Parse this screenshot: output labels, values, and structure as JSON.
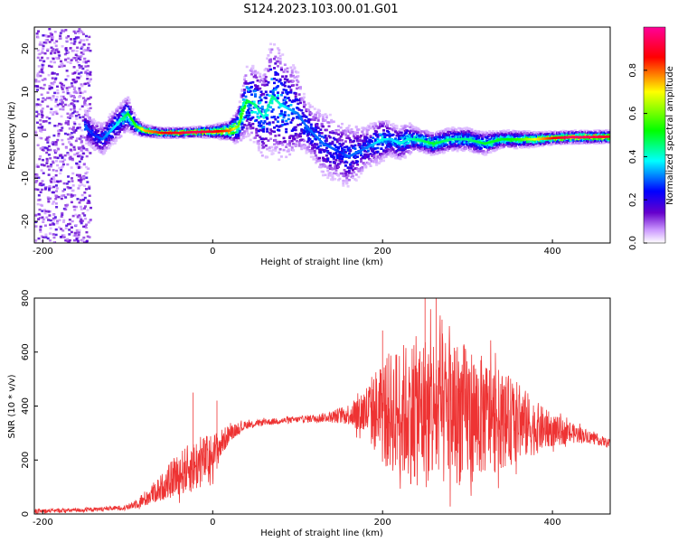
{
  "title": "S124.2023.103.00.01.G01",
  "chart_data": [
    {
      "type": "heatmap",
      "xlabel": "Height of straight line (km)",
      "ylabel": "Frequency (Hz)",
      "xlim": [
        -210,
        468
      ],
      "ylim": [
        -25,
        25
      ],
      "x_ticks": [
        -200,
        0,
        200,
        400
      ],
      "y_ticks": [
        -20,
        -10,
        0,
        10,
        20
      ],
      "colorbar": {
        "label": "Normalized spectral amplitude",
        "range": [
          0,
          1
        ],
        "ticks": [
          "0.0",
          "0.2",
          "0.4",
          "0.6",
          "0.8"
        ],
        "colormap": [
          "#ffffff",
          "#6600cc",
          "#0000ff",
          "#00ffff",
          "#00ff00",
          "#ffff00",
          "#ff0000",
          "#ff00aa"
        ]
      },
      "ridge": {
        "x": [
          -150,
          -140,
          -130,
          -120,
          -110,
          -100,
          -90,
          -80,
          -60,
          -40,
          -20,
          0,
          20,
          30,
          40,
          50,
          60,
          70,
          80,
          90,
          100,
          110,
          120,
          130,
          140,
          150,
          160,
          170,
          180,
          190,
          200,
          210,
          220,
          230,
          240,
          260,
          280,
          300,
          320,
          340,
          360,
          380,
          400,
          420,
          440,
          465
        ],
        "y": [
          2,
          0,
          -1,
          1,
          3,
          5,
          2,
          1,
          0.5,
          0.5,
          0.7,
          0.8,
          1,
          2,
          8,
          7,
          4,
          9,
          7,
          6,
          5,
          2,
          0,
          -2,
          -3,
          -4,
          -5,
          -4,
          -3,
          -2,
          -1,
          -1,
          -2,
          -1,
          -1,
          -2,
          -1,
          -1,
          -2,
          -1,
          -1,
          -1,
          -0.7,
          -0.5,
          -0.5,
          -0.4
        ],
        "amplitude": [
          0.3,
          0.25,
          0.3,
          0.35,
          0.4,
          0.5,
          0.55,
          0.75,
          0.85,
          0.9,
          0.95,
          0.9,
          0.8,
          0.6,
          0.5,
          0.45,
          0.4,
          0.45,
          0.4,
          0.35,
          0.3,
          0.3,
          0.3,
          0.3,
          0.3,
          0.25,
          0.3,
          0.3,
          0.3,
          0.35,
          0.4,
          0.35,
          0.4,
          0.4,
          0.45,
          0.5,
          0.45,
          0.45,
          0.5,
          0.5,
          0.55,
          0.7,
          0.85,
          0.95,
          0.95,
          0.9
        ],
        "spread_hz": [
          3,
          3,
          3,
          3,
          3,
          3,
          1.5,
          1,
          0.8,
          0.8,
          0.8,
          1,
          1.5,
          3,
          6,
          7,
          8,
          10,
          10,
          9,
          8,
          5,
          5,
          6,
          6,
          6,
          6,
          5,
          4,
          4,
          4,
          3,
          3,
          3,
          2,
          2,
          2,
          2,
          2,
          1.5,
          1.5,
          1.2,
          1,
          1,
          1,
          1
        ]
      },
      "noise_band_x": [
        -210,
        -145
      ]
    },
    {
      "type": "line",
      "xlabel": "Height of straight line (km)",
      "ylabel": "SNR (10 * v/v)",
      "xlim": [
        -210,
        468
      ],
      "ylim": [
        0,
        800
      ],
      "x_ticks": [
        -200,
        0,
        200,
        400
      ],
      "y_ticks": [
        0,
        200,
        400,
        600,
        800
      ],
      "color": "#ee3333",
      "envelope": {
        "x": [
          -210,
          -150,
          -120,
          -100,
          -80,
          -60,
          -40,
          -20,
          0,
          20,
          40,
          60,
          80,
          100,
          120,
          140,
          160,
          180,
          200,
          220,
          240,
          260,
          280,
          300,
          320,
          340,
          360,
          380,
          400,
          420,
          440,
          468
        ],
        "center": [
          10,
          15,
          20,
          25,
          55,
          100,
          150,
          180,
          220,
          300,
          330,
          340,
          345,
          350,
          355,
          360,
          370,
          380,
          380,
          380,
          380,
          380,
          380,
          370,
          360,
          350,
          340,
          320,
          310,
          300,
          290,
          260
        ],
        "spread": [
          8,
          8,
          8,
          10,
          30,
          50,
          80,
          100,
          80,
          30,
          15,
          12,
          12,
          12,
          15,
          20,
          40,
          100,
          200,
          250,
          280,
          300,
          280,
          260,
          220,
          180,
          150,
          100,
          60,
          40,
          25,
          15
        ]
      },
      "peaks": [
        {
          "x": -23,
          "y": 450
        },
        {
          "x": 5,
          "y": 420
        },
        {
          "x": 200,
          "y": 680
        },
        {
          "x": 250,
          "y": 800
        },
        {
          "x": 263,
          "y": 800
        },
        {
          "x": 270,
          "y": 720
        }
      ]
    }
  ]
}
